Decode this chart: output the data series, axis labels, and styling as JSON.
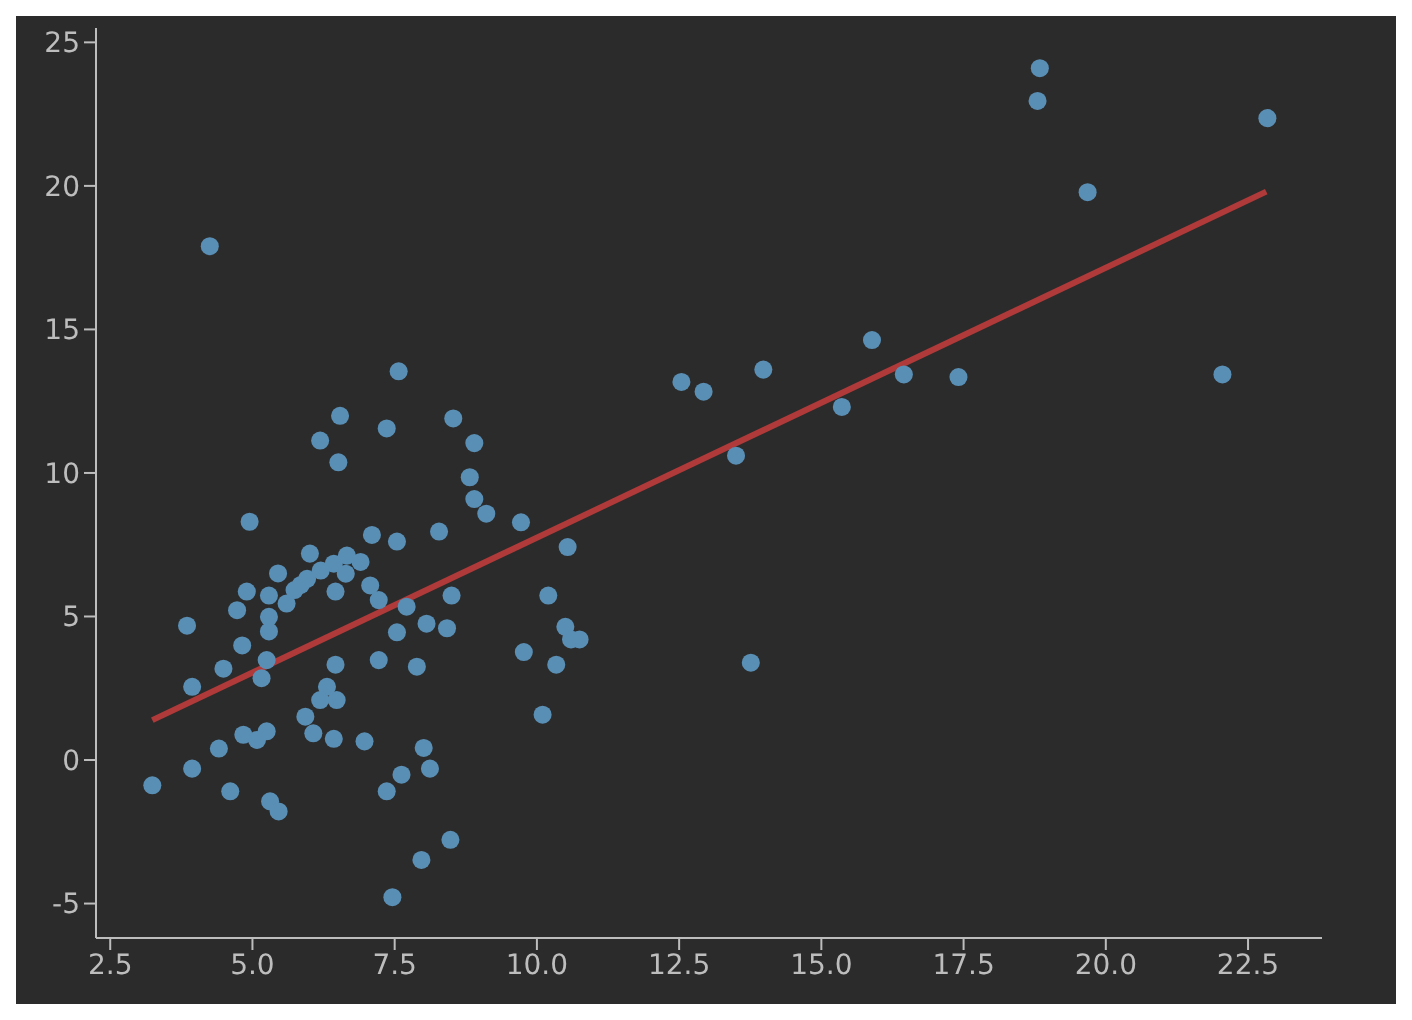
{
  "chart_data": {
    "type": "scatter",
    "xlim": [
      2.25,
      23.8
    ],
    "ylim": [
      -6.2,
      25.5
    ],
    "xticks": [
      2.5,
      {
        "value": 5,
        "label": "5.0"
      },
      7.5,
      {
        "value": 10,
        "label": "10.0"
      },
      12.5,
      {
        "value": 15,
        "label": "15.0"
      },
      17.5,
      {
        "value": 20,
        "label": "20.0"
      },
      22.5
    ],
    "yticks": [
      -5,
      0,
      5,
      10,
      15,
      20,
      25
    ],
    "marker": "circle",
    "series": [
      {
        "color": "#5a8fb5",
        "x": [
          12.54,
          12.93,
          13.98,
          13.5,
          15.36,
          15.89,
          16.45,
          17.41,
          18.84,
          18.8,
          19.68,
          22.05,
          22.84,
          13.76,
          4.25,
          7.57,
          8.9,
          8.82,
          8.9,
          9.11,
          9.72,
          10.54,
          10.2,
          10.5,
          10.6,
          10.75,
          9.77,
          10.34,
          10.1,
          6.54,
          6.19,
          6.51,
          7.36,
          8.53,
          7.1,
          7.54,
          8.28,
          6.01,
          6.66,
          7.07,
          7.22,
          7.71,
          8.06,
          8.42,
          8.5,
          7.54,
          7.22,
          7.89,
          6.46,
          6.97,
          8.01,
          7.62,
          8.12,
          7.36,
          8.48,
          7.97,
          7.46,
          4.95,
          6.43,
          5.45,
          5.96,
          4.9,
          5.29,
          5.74,
          5.6,
          6.46,
          6.64,
          4.73,
          5.29,
          5.29,
          3.85,
          4.82,
          5.25,
          5.16,
          4.49,
          3.94,
          6.31,
          6.48,
          5.93,
          6.07,
          6.43,
          6.19,
          4.84,
          5.08,
          5.25,
          4.41,
          3.94,
          3.24,
          4.61,
          5.31,
          5.46,
          5.85,
          6.2,
          6.9
        ],
        "values": [
          13.17,
          12.83,
          13.6,
          10.6,
          12.3,
          14.63,
          13.43,
          13.34,
          24.1,
          22.96,
          19.78,
          13.43,
          22.36,
          3.39,
          17.9,
          13.54,
          11.04,
          9.85,
          9.09,
          8.58,
          8.28,
          7.42,
          5.73,
          4.64,
          4.2,
          4.2,
          3.76,
          3.32,
          1.58,
          11.99,
          11.13,
          10.37,
          11.55,
          11.9,
          7.84,
          7.61,
          7.96,
          7.19,
          7.12,
          6.08,
          5.57,
          5.34,
          4.75,
          4.59,
          5.73,
          4.45,
          3.48,
          3.25,
          3.32,
          0.65,
          0.42,
          -0.51,
          -0.3,
          -1.09,
          -2.78,
          -3.48,
          -4.78,
          8.3,
          6.84,
          6.5,
          6.31,
          5.87,
          5.73,
          5.92,
          5.45,
          5.87,
          6.49,
          5.22,
          4.99,
          4.48,
          4.68,
          3.99,
          3.48,
          2.85,
          3.18,
          2.55,
          2.55,
          2.09,
          1.51,
          0.93,
          0.74,
          2.09,
          0.88,
          0.7,
          1.0,
          0.4,
          -0.3,
          -0.88,
          -1.09,
          -1.44,
          -1.79,
          6.1,
          6.6,
          6.9
        ]
      },
      {
        "type": "line",
        "marker": "none",
        "color": "#b03a3a",
        "x": [
          3.24,
          22.82
        ],
        "values": [
          1.39,
          19.8
        ]
      }
    ]
  }
}
